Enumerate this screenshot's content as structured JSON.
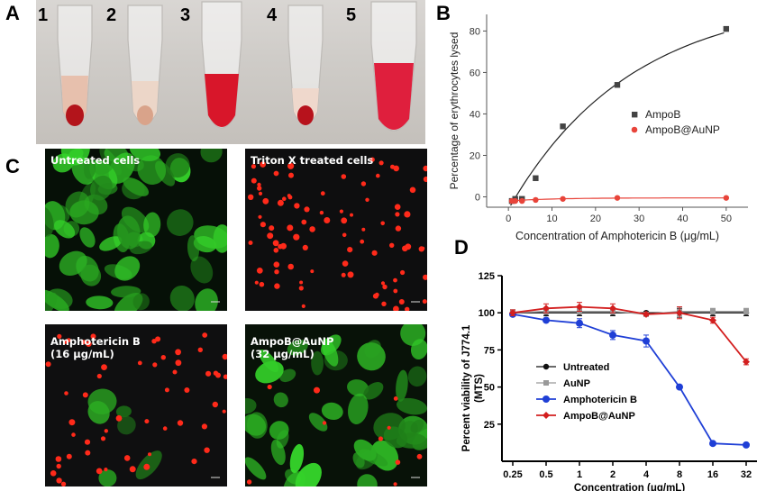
{
  "panels": {
    "a": "A",
    "b": "B",
    "c": "C",
    "d": "D"
  },
  "tubes": [
    {
      "label": "1",
      "fill": "pellet"
    },
    {
      "label": "2",
      "fill": "pellet"
    },
    {
      "label": "3",
      "fill": "lysed"
    },
    {
      "label": "4",
      "fill": "pellet"
    },
    {
      "label": "5",
      "fill": "lysed"
    }
  ],
  "micrographs": [
    {
      "label": "Untreated cells",
      "stain": "green"
    },
    {
      "label": "Triton X treated cells",
      "stain": "red"
    },
    {
      "label": "Amphotericin B\n(16 μg/mL)",
      "stain": "red-sparse-green"
    },
    {
      "label": "AmpoB@AuNP\n(32 μg/mL)",
      "stain": "green-with-red"
    }
  ],
  "colors": {
    "ampob": "#444444",
    "ampob_aunp": "#e8443a",
    "untreated": "#111111",
    "aunp": "#999999",
    "amphotericin": "#1f3fd6",
    "ampob_aunp_d": "#d31f1f"
  },
  "chart_data": [
    {
      "type": "scatter",
      "panel": "B",
      "xlabel": "Concentration of Amphotericin B (μg/mL)",
      "ylabel": "Percentage of erythrocytes lysed",
      "xlim": [
        -5,
        55
      ],
      "ylim": [
        -5,
        88
      ],
      "xticks": [
        0,
        10,
        20,
        30,
        40,
        50
      ],
      "yticks": [
        0,
        20,
        40,
        60,
        80
      ],
      "legend_position": "right",
      "series": [
        {
          "name": "AmpoB",
          "x": [
            0.78,
            1.56,
            3.12,
            6.25,
            12.5,
            25,
            50
          ],
          "y": [
            -2,
            -1,
            -1,
            9,
            34,
            54,
            81
          ],
          "fit": "curve"
        },
        {
          "name": "AmpoB@AuNP",
          "x": [
            0.78,
            1.56,
            3.12,
            6.25,
            12.5,
            25,
            50
          ],
          "y": [
            -2,
            -2,
            -2,
            -1.5,
            -1,
            -0.5,
            -0.5
          ],
          "fit": "curve"
        }
      ]
    },
    {
      "type": "line",
      "panel": "D",
      "xlabel": "Concentration (μg/mL)",
      "ylabel": "Percent viability of J774.1\n(MTS)",
      "categories": [
        "0.25",
        "0.5",
        "1",
        "2",
        "4",
        "8",
        "16",
        "32"
      ],
      "ylim": [
        0,
        125
      ],
      "yticks": [
        25,
        50,
        75,
        100,
        125
      ],
      "legend_position": "lower-left",
      "series": [
        {
          "name": "Untreated",
          "values": [
            100,
            100,
            100,
            100,
            100,
            100,
            100,
            100
          ],
          "err": [
            2,
            2,
            2,
            2,
            1,
            3,
            2,
            2
          ]
        },
        {
          "name": "AuNP",
          "values": [
            100,
            101,
            101,
            101,
            99,
            101,
            101,
            101
          ],
          "err": [
            2,
            2,
            2,
            2,
            1,
            3,
            2,
            2
          ]
        },
        {
          "name": "Amphotericin B",
          "values": [
            99,
            95,
            93,
            85,
            81,
            50,
            12,
            11
          ],
          "err": [
            1,
            1,
            3,
            3,
            4,
            1,
            1,
            1
          ]
        },
        {
          "name": "AmpoB@AuNP",
          "values": [
            100,
            103,
            104,
            103,
            99,
            100,
            95,
            67
          ],
          "err": [
            2,
            3,
            3,
            3,
            1,
            4,
            2,
            2
          ]
        }
      ]
    }
  ]
}
